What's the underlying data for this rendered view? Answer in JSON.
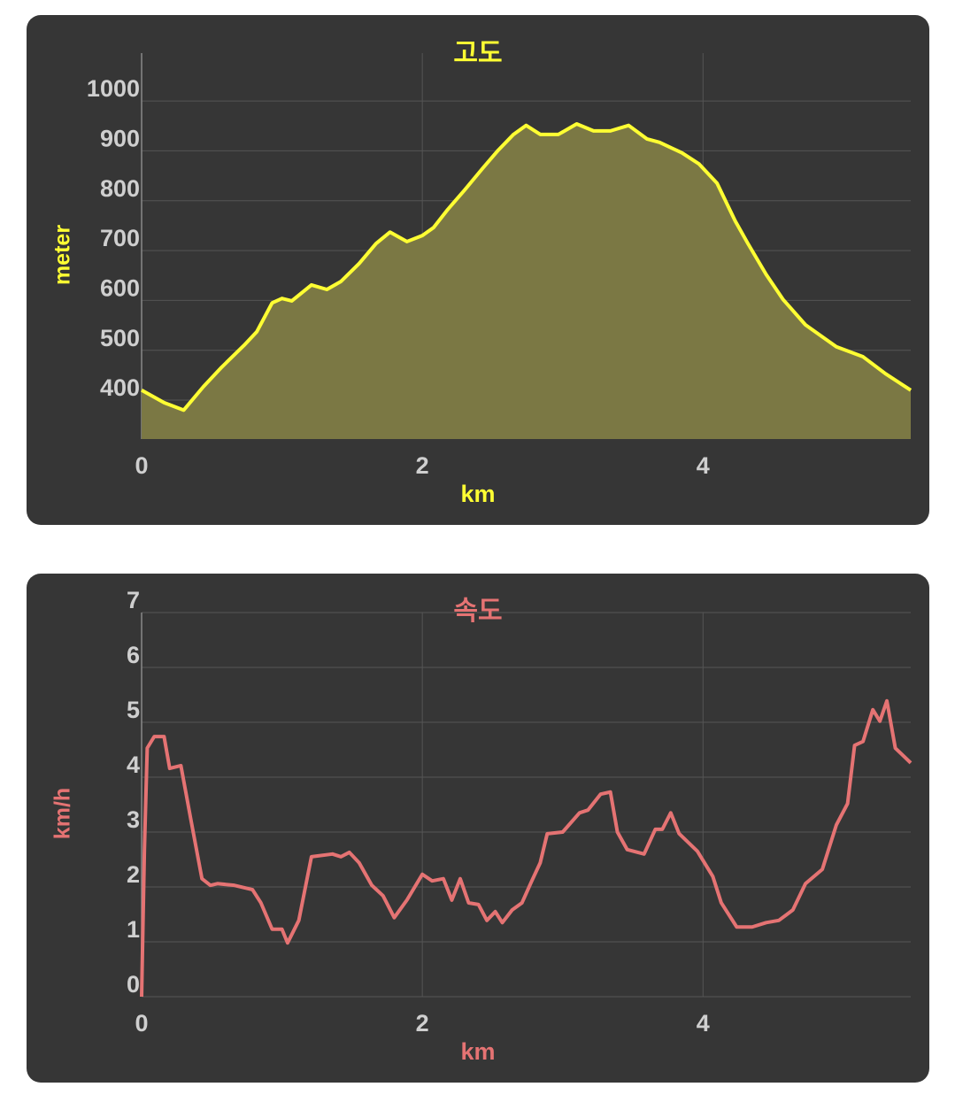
{
  "chart_data": [
    {
      "type": "area",
      "title": "고도",
      "x_label": "km",
      "y_label": "meter",
      "color": "#ffff33",
      "fill": "#7b7844",
      "xlim": [
        0,
        5.48
      ],
      "xticks": [
        0,
        2,
        4
      ],
      "ylim": [
        322,
        1096
      ],
      "yticks": [
        400,
        500,
        600,
        700,
        800,
        900,
        1000
      ],
      "grid": true,
      "x": [
        0,
        0.16,
        0.3,
        0.44,
        0.57,
        0.73,
        0.82,
        0.93,
        1.0,
        1.07,
        1.21,
        1.32,
        1.42,
        1.55,
        1.67,
        1.77,
        1.89,
        2.0,
        2.08,
        2.18,
        2.3,
        2.43,
        2.54,
        2.65,
        2.74,
        2.84,
        2.97,
        3.1,
        3.22,
        3.34,
        3.47,
        3.6,
        3.69,
        3.85,
        3.97,
        4.1,
        4.23,
        4.32,
        4.45,
        4.57,
        4.73,
        4.95,
        5.14,
        5.3,
        5.48
      ],
      "values": [
        420,
        395,
        380,
        427,
        466,
        510,
        537,
        595,
        604,
        599,
        631,
        622,
        638,
        674,
        714,
        737,
        718,
        730,
        746,
        782,
        821,
        865,
        901,
        933,
        951,
        933,
        933,
        954,
        940,
        940,
        951,
        924,
        917,
        896,
        874,
        835,
        759,
        714,
        652,
        602,
        551,
        507,
        487,
        453,
        420
      ]
    },
    {
      "type": "line",
      "title": "속도",
      "x_label": "km",
      "y_label": "km/h",
      "color": "#e57373",
      "xlim": [
        0,
        5.48
      ],
      "xticks": [
        0,
        2,
        4
      ],
      "ylim": [
        0,
        7
      ],
      "yticks": [
        0,
        1,
        2,
        3,
        4,
        5,
        6,
        7
      ],
      "grid": true,
      "x": [
        0,
        0.02,
        0.04,
        0.09,
        0.16,
        0.2,
        0.28,
        0.35,
        0.43,
        0.49,
        0.54,
        0.66,
        0.79,
        0.85,
        0.93,
        1.0,
        1.04,
        1.12,
        1.21,
        1.36,
        1.42,
        1.48,
        1.55,
        1.64,
        1.72,
        1.8,
        1.89,
        2.0,
        2.07,
        2.15,
        2.21,
        2.27,
        2.33,
        2.4,
        2.46,
        2.52,
        2.57,
        2.64,
        2.71,
        2.78,
        2.84,
        2.89,
        3.0,
        3.12,
        3.18,
        3.27,
        3.34,
        3.39,
        3.46,
        3.58,
        3.66,
        3.71,
        3.77,
        3.83,
        3.96,
        4.07,
        4.13,
        4.24,
        4.35,
        4.45,
        4.54,
        4.64,
        4.73,
        4.85,
        4.95,
        5.03,
        5.08,
        5.14,
        5.21,
        5.26,
        5.31,
        5.37,
        5.48
      ],
      "values": [
        0,
        2.68,
        4.53,
        4.74,
        4.74,
        4.16,
        4.21,
        3.24,
        2.15,
        2.03,
        2.06,
        2.03,
        1.95,
        1.71,
        1.23,
        1.23,
        0.98,
        1.39,
        2.55,
        2.6,
        2.55,
        2.63,
        2.44,
        2.03,
        1.84,
        1.44,
        1.76,
        2.23,
        2.11,
        2.15,
        1.76,
        2.15,
        1.71,
        1.68,
        1.39,
        1.55,
        1.35,
        1.58,
        1.71,
        2.11,
        2.44,
        2.97,
        3.0,
        3.35,
        3.4,
        3.69,
        3.73,
        3.0,
        2.68,
        2.6,
        3.05,
        3.05,
        3.35,
        2.97,
        2.65,
        2.19,
        1.71,
        1.27,
        1.27,
        1.35,
        1.39,
        1.58,
        2.06,
        2.32,
        3.13,
        3.52,
        4.58,
        4.65,
        5.23,
        5.02,
        5.39,
        4.53,
        4.26
      ]
    }
  ]
}
